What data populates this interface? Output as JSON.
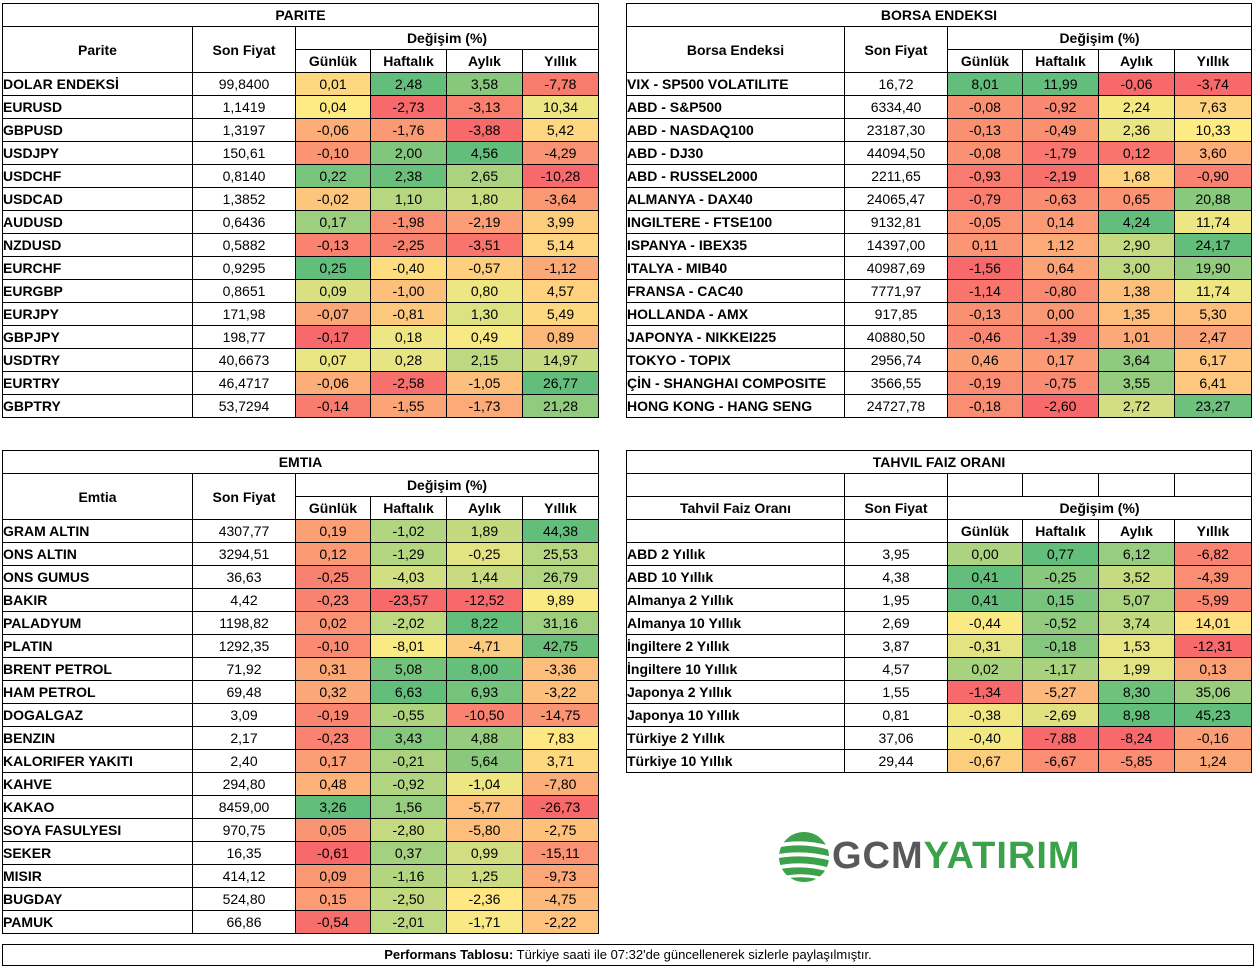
{
  "parite": {
    "title": "PARITE",
    "h_name": "Parite",
    "h_price": "Son Fiyat",
    "h_change": "Değişim (%)",
    "h_cols": [
      "Günlük",
      "Haftalık",
      "Aylık",
      "Yıllık"
    ],
    "rows": [
      {
        "name": "DOLAR ENDEKSİ",
        "price": "99,8400",
        "chg": [
          "0,01",
          "2,48",
          "3,58",
          "-7,78"
        ]
      },
      {
        "name": "EURUSD",
        "price": "1,1419",
        "chg": [
          "0,04",
          "-2,73",
          "-3,13",
          "10,34"
        ]
      },
      {
        "name": "GBPUSD",
        "price": "1,3197",
        "chg": [
          "-0,06",
          "-1,76",
          "-3,88",
          "5,42"
        ]
      },
      {
        "name": "USDJPY",
        "price": "150,61",
        "chg": [
          "-0,10",
          "2,00",
          "4,56",
          "-4,29"
        ]
      },
      {
        "name": "USDCHF",
        "price": "0,8140",
        "chg": [
          "0,22",
          "2,38",
          "2,65",
          "-10,28"
        ]
      },
      {
        "name": "USDCAD",
        "price": "1,3852",
        "chg": [
          "-0,02",
          "1,10",
          "1,80",
          "-3,64"
        ]
      },
      {
        "name": "AUDUSD",
        "price": "0,6436",
        "chg": [
          "0,17",
          "-1,98",
          "-2,19",
          "3,99"
        ]
      },
      {
        "name": "NZDUSD",
        "price": "0,5882",
        "chg": [
          "-0,13",
          "-2,25",
          "-3,51",
          "5,14"
        ]
      },
      {
        "name": "EURCHF",
        "price": "0,9295",
        "chg": [
          "0,25",
          "-0,40",
          "-0,57",
          "-1,12"
        ]
      },
      {
        "name": "EURGBP",
        "price": "0,8651",
        "chg": [
          "0,09",
          "-1,00",
          "0,80",
          "4,57"
        ]
      },
      {
        "name": "EURJPY",
        "price": "171,98",
        "chg": [
          "-0,07",
          "-0,81",
          "1,30",
          "5,49"
        ]
      },
      {
        "name": "GBPJPY",
        "price": "198,77",
        "chg": [
          "-0,17",
          "0,18",
          "0,49",
          "0,89"
        ]
      },
      {
        "name": "USDTRY",
        "price": "40,6673",
        "chg": [
          "0,07",
          "0,28",
          "2,15",
          "14,97"
        ]
      },
      {
        "name": "EURTRY",
        "price": "46,4717",
        "chg": [
          "-0,06",
          "-2,58",
          "-1,05",
          "26,77"
        ]
      },
      {
        "name": "GBPTRY",
        "price": "53,7294",
        "chg": [
          "-0,14",
          "-1,55",
          "-1,73",
          "21,28"
        ]
      }
    ]
  },
  "borsa": {
    "title": "BORSA ENDEKSI",
    "h_name": "Borsa Endeksi",
    "h_price": "Son Fiyat",
    "h_change": "Değişim (%)",
    "h_cols": [
      "Günlük",
      "Haftalık",
      "Aylık",
      "Yıllık"
    ],
    "rows": [
      {
        "name": "VIX  - SP500 VOLATILITE",
        "price": "16,72",
        "chg": [
          "8,01",
          "11,99",
          "-0,06",
          "-3,74"
        ]
      },
      {
        "name": "ABD - S&P500",
        "price": "6334,40",
        "chg": [
          "-0,08",
          "-0,92",
          "2,24",
          "7,63"
        ]
      },
      {
        "name": "ABD - NASDAQ100",
        "price": "23187,30",
        "chg": [
          "-0,13",
          "-0,49",
          "2,36",
          "10,33"
        ]
      },
      {
        "name": "ABD - DJ30",
        "price": "44094,50",
        "chg": [
          "-0,08",
          "-1,79",
          "0,12",
          "3,60"
        ]
      },
      {
        "name": "ABD - RUSSEL2000",
        "price": "2211,65",
        "chg": [
          "-0,93",
          "-2,19",
          "1,68",
          "-0,90"
        ]
      },
      {
        "name": "ALMANYA - DAX40",
        "price": "24065,47",
        "chg": [
          "-0,79",
          "-0,63",
          "0,65",
          "20,88"
        ]
      },
      {
        "name": "INGILTERE - FTSE100",
        "price": "9132,81",
        "chg": [
          "-0,05",
          "0,14",
          "4,24",
          "11,74"
        ]
      },
      {
        "name": "ISPANYA - IBEX35",
        "price": "14397,00",
        "chg": [
          "0,11",
          "1,12",
          "2,90",
          "24,17"
        ]
      },
      {
        "name": "ITALYA - MIB40",
        "price": "40987,69",
        "chg": [
          "-1,56",
          "0,64",
          "3,00",
          "19,90"
        ]
      },
      {
        "name": "FRANSA - CAC40",
        "price": "7771,97",
        "chg": [
          "-1,14",
          "-0,80",
          "1,38",
          "11,74"
        ]
      },
      {
        "name": "HOLLANDA - AMX",
        "price": "917,85",
        "chg": [
          "-0,13",
          "0,00",
          "1,35",
          "5,30"
        ]
      },
      {
        "name": "JAPONYA - NIKKEI225",
        "price": "40880,50",
        "chg": [
          "-0,46",
          "-1,39",
          "1,01",
          "2,47"
        ]
      },
      {
        "name": "TOKYO - TOPIX",
        "price": "2956,74",
        "chg": [
          "0,46",
          "0,17",
          "3,64",
          "6,17"
        ]
      },
      {
        "name": "ÇİN - SHANGHAI COMPOSITE",
        "price": "3566,55",
        "chg": [
          "-0,19",
          "-0,75",
          "3,55",
          "6,41"
        ]
      },
      {
        "name": "HONG KONG - HANG SENG",
        "price": "24727,78",
        "chg": [
          "-0,18",
          "-2,60",
          "2,72",
          "23,27"
        ]
      }
    ]
  },
  "emtia": {
    "title": "EMTIA",
    "h_name": "Emtia",
    "h_price": "Son Fiyat",
    "h_change": "Değişim (%)",
    "h_cols": [
      "Günlük",
      "Haftalık",
      "Aylık",
      "Yıllık"
    ],
    "rows": [
      {
        "name": "GRAM ALTIN",
        "price": "4307,77",
        "chg": [
          "0,19",
          "-1,02",
          "1,89",
          "44,38"
        ]
      },
      {
        "name": "ONS ALTIN",
        "price": "3294,51",
        "chg": [
          "0,12",
          "-1,29",
          "-0,25",
          "25,53"
        ]
      },
      {
        "name": "ONS GUMUS",
        "price": "36,63",
        "chg": [
          "-0,25",
          "-4,03",
          "1,44",
          "26,79"
        ]
      },
      {
        "name": "BAKIR",
        "price": "4,42",
        "chg": [
          "-0,23",
          "-23,57",
          "-12,52",
          "9,89"
        ]
      },
      {
        "name": "PALADYUM",
        "price": "1198,82",
        "chg": [
          "0,02",
          "-2,02",
          "8,22",
          "31,16"
        ]
      },
      {
        "name": "PLATIN",
        "price": "1292,35",
        "chg": [
          "-0,10",
          "-8,01",
          "-4,71",
          "42,75"
        ]
      },
      {
        "name": "BRENT PETROL",
        "price": "71,92",
        "chg": [
          "0,31",
          "5,08",
          "8,00",
          "-3,36"
        ]
      },
      {
        "name": "HAM PETROL",
        "price": "69,48",
        "chg": [
          "0,32",
          "6,63",
          "6,93",
          "-3,22"
        ]
      },
      {
        "name": "DOGALGAZ",
        "price": "3,09",
        "chg": [
          "-0,19",
          "-0,55",
          "-10,50",
          "-14,75"
        ]
      },
      {
        "name": "BENZIN",
        "price": "2,17",
        "chg": [
          "-0,23",
          "3,43",
          "4,88",
          "7,83"
        ]
      },
      {
        "name": "KALORIFER YAKITI",
        "price": "2,40",
        "chg": [
          "0,17",
          "-0,21",
          "5,64",
          "3,71"
        ]
      },
      {
        "name": "KAHVE",
        "price": "294,80",
        "chg": [
          "0,48",
          "-0,92",
          "-1,04",
          "-7,80"
        ]
      },
      {
        "name": "KAKAO",
        "price": "8459,00",
        "chg": [
          "3,26",
          "1,56",
          "-5,77",
          "-26,73"
        ]
      },
      {
        "name": "SOYA FASULYESI",
        "price": "970,75",
        "chg": [
          "0,05",
          "-2,80",
          "-5,80",
          "-2,75"
        ]
      },
      {
        "name": "SEKER",
        "price": "16,35",
        "chg": [
          "-0,61",
          "0,37",
          "0,99",
          "-15,11"
        ]
      },
      {
        "name": "MISIR",
        "price": "414,12",
        "chg": [
          "0,09",
          "-1,16",
          "1,25",
          "-9,73"
        ]
      },
      {
        "name": "BUGDAY",
        "price": "524,80",
        "chg": [
          "0,15",
          "-2,50",
          "-2,36",
          "-4,75"
        ]
      },
      {
        "name": "PAMUK",
        "price": "66,86",
        "chg": [
          "-0,54",
          "-2,01",
          "-1,71",
          "-2,22"
        ]
      }
    ]
  },
  "tahvil": {
    "title": "TAHVIL FAIZ ORANI",
    "h_name": "Tahvil Faiz Oranı",
    "h_price": "Son Fiyat",
    "h_change": "Değişim (%)",
    "h_cols": [
      "Günlük",
      "Haftalık",
      "Aylık",
      "Yıllık"
    ],
    "rows": [
      {
        "name": "ABD 2 Yıllık",
        "price": "3,95",
        "chg": [
          "0,00",
          "0,77",
          "6,12",
          "-6,82"
        ]
      },
      {
        "name": "ABD 10 Yıllık",
        "price": "4,38",
        "chg": [
          "0,41",
          "-0,25",
          "3,52",
          "-4,39"
        ]
      },
      {
        "name": "Almanya 2 Yıllık",
        "price": "1,95",
        "chg": [
          "0,41",
          "0,15",
          "5,07",
          "-5,99"
        ]
      },
      {
        "name": "Almanya 10 Yıllık",
        "price": "2,69",
        "chg": [
          "-0,44",
          "-0,52",
          "3,74",
          "14,01"
        ]
      },
      {
        "name": "İngiltere 2 Yıllık",
        "price": "3,87",
        "chg": [
          "-0,31",
          "-0,18",
          "1,53",
          "-12,31"
        ]
      },
      {
        "name": "İngiltere 10 Yıllık",
        "price": "4,57",
        "chg": [
          "0,02",
          "-1,17",
          "1,99",
          "0,13"
        ]
      },
      {
        "name": "Japonya 2 Yıllık",
        "price": "1,55",
        "chg": [
          "-1,34",
          "-5,27",
          "8,30",
          "35,06"
        ]
      },
      {
        "name": "Japonya 10 Yıllık",
        "price": "0,81",
        "chg": [
          "-0,38",
          "-2,69",
          "8,98",
          "45,23"
        ]
      },
      {
        "name": "Türkiye 2 Yıllık",
        "price": "37,06",
        "chg": [
          "-0,40",
          "-7,88",
          "-8,24",
          "-0,16"
        ]
      },
      {
        "name": "Türkiye 10 Yıllık",
        "price": "29,44",
        "chg": [
          "-0,67",
          "-6,67",
          "-5,85",
          "1,24"
        ]
      }
    ]
  },
  "logo": {
    "part1": "GCM",
    "part2": "YATIRIM"
  },
  "footer": {
    "label": "Performans Tablosu:",
    "text": " Türkiye saati ile 07:32'de güncellenerek sizlerle paylaşılmıştır."
  },
  "colors": {
    "low": "#f8696b",
    "mid": "#ffeb84",
    "high": "#63be7b"
  }
}
